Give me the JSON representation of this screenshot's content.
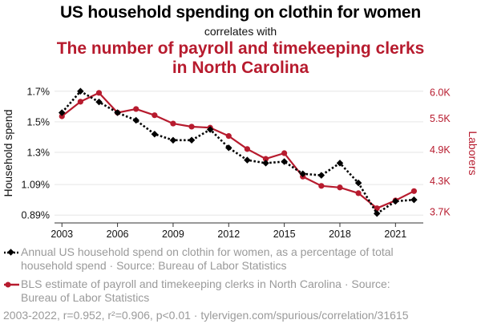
{
  "header": {
    "title": "US household spending on clothin for women",
    "subtitle": "correlates with",
    "title2": "The number of payroll and timekeeping clerks in North Carolina"
  },
  "legend": {
    "series1_text": "Annual US household spend on clothin for women, as a percentage of total household spend · Source: Bureau of Labor Statistics",
    "series2_text": "BLS estimate of payroll and timekeeping clerks in North Carolina · Source: Bureau of Labor Statistics"
  },
  "footer": {
    "text": "2003-2022, r=0.952, r²=0.906, p<0.01 · tylervigen.com/spurious/correlation/31615"
  },
  "chart_data": {
    "type": "line",
    "x": [
      2003,
      2004,
      2005,
      2006,
      2007,
      2008,
      2009,
      2010,
      2011,
      2012,
      2013,
      2014,
      2015,
      2016,
      2017,
      2018,
      2019,
      2020,
      2021,
      2022
    ],
    "xlim": [
      2002.6,
      2022.5
    ],
    "xticks": [
      "2003",
      "2006",
      "2009",
      "2012",
      "2015",
      "2018",
      "2021"
    ],
    "ylabel_left": "Household spend",
    "ylabel_right": "Laborers",
    "ylim_left": [
      0.87,
      1.72
    ],
    "ylim_right": [
      3580,
      6080
    ],
    "yticks_left": [
      {
        "value": 0.89,
        "label": "0.89%"
      },
      {
        "value": 1.09,
        "label": "1.09%"
      },
      {
        "value": 1.3,
        "label": "1.3%"
      },
      {
        "value": 1.5,
        "label": "1.5%"
      },
      {
        "value": 1.7,
        "label": "1.7%"
      }
    ],
    "yticks_right": [
      {
        "value": 3700,
        "label": "3.7K"
      },
      {
        "value": 4300,
        "label": "4.3K"
      },
      {
        "value": 4900,
        "label": "4.9K"
      },
      {
        "value": 5500,
        "label": "5.5K"
      },
      {
        "value": 6000,
        "label": "6.0K"
      }
    ],
    "series": [
      {
        "name": "Household spend",
        "axis": "left",
        "color": "#000000",
        "style": "dotted",
        "marker": "diamond",
        "values": [
          1.56,
          1.7,
          1.63,
          1.56,
          1.51,
          1.42,
          1.38,
          1.38,
          1.45,
          1.33,
          1.25,
          1.23,
          1.24,
          1.16,
          1.15,
          1.23,
          1.1,
          0.9,
          0.98,
          0.99
        ]
      },
      {
        "name": "Laborers",
        "axis": "right",
        "color": "#b71b2e",
        "style": "solid",
        "marker": "circle",
        "values": [
          5540,
          5820,
          5990,
          5610,
          5680,
          5560,
          5400,
          5340,
          5320,
          5160,
          4910,
          4720,
          4830,
          4380,
          4200,
          4170,
          4060,
          3770,
          3920,
          4100
        ]
      }
    ]
  }
}
